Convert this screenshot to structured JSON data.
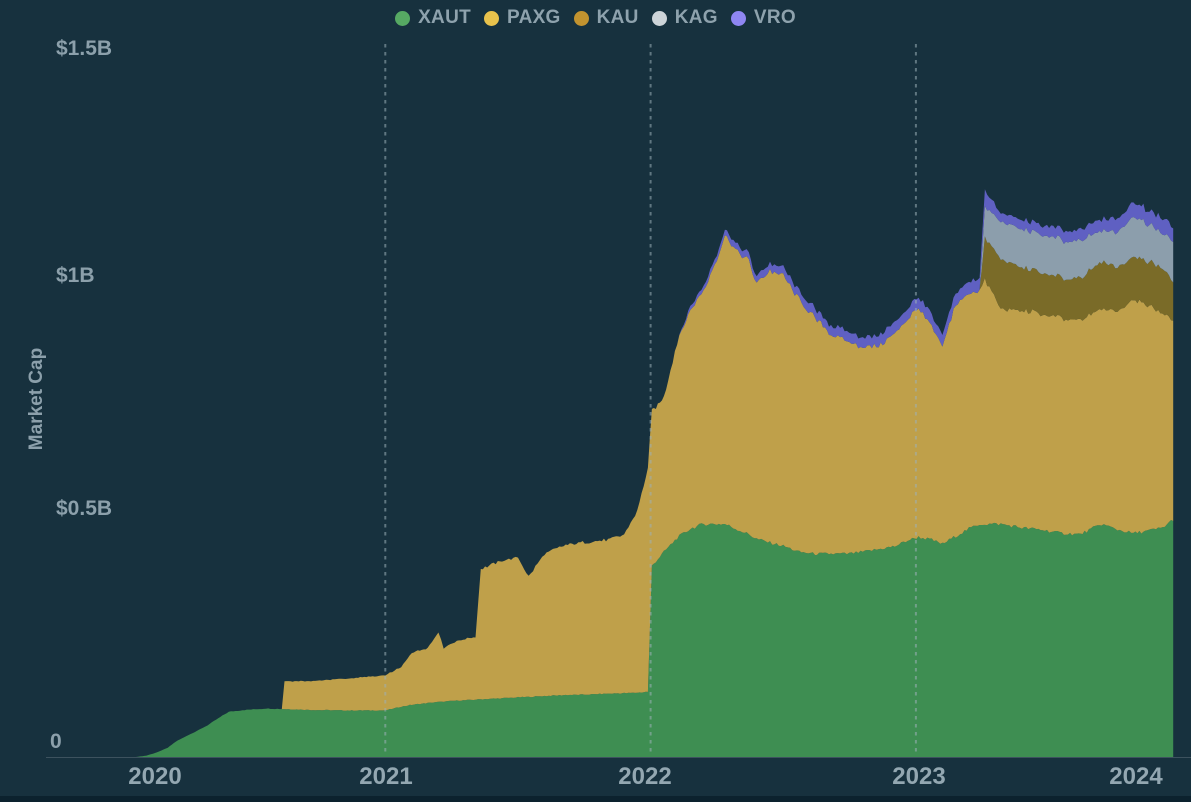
{
  "chart_data": {
    "type": "area",
    "stacked": true,
    "title": "",
    "ylabel": "Market Cap",
    "background_color": "#17313e",
    "legend_position": "top",
    "x_unit": "decimal_year",
    "y_unit": "USD billions",
    "ylim": [
      0,
      1.5
    ],
    "xlim": [
      2020,
      2024.05
    ],
    "grid": "vertical-dashed-at-years",
    "y_ticks": [
      {
        "value": 0,
        "label": "0"
      },
      {
        "value": 0.5,
        "label": "$0.5B"
      },
      {
        "value": 1.0,
        "label": "$1B"
      },
      {
        "value": 1.5,
        "label": "$1.5B"
      }
    ],
    "x_ticks": [
      {
        "year": 2020,
        "label": "2020"
      },
      {
        "year": 2021,
        "label": "2021"
      },
      {
        "year": 2022,
        "label": "2022"
      },
      {
        "year": 2023,
        "label": "2023"
      },
      {
        "year": 2024,
        "label": "2024"
      }
    ],
    "gridline_years": [
      2021,
      2022,
      2023
    ],
    "x": [
      2020.06,
      2020.1,
      2020.14,
      2020.18,
      2020.21,
      2020.25,
      2020.29,
      2020.33,
      2020.37,
      2020.41,
      2020.47,
      2020.55,
      2020.61,
      2020.62,
      2020.72,
      2020.85,
      2021.0,
      2021.06,
      2021.1,
      2021.16,
      2021.2,
      2021.22,
      2021.27,
      2021.34,
      2021.36,
      2021.44,
      2021.5,
      2021.54,
      2021.6,
      2021.68,
      2021.76,
      2021.84,
      2021.9,
      2021.95,
      2021.99,
      2022.005,
      2022.05,
      2022.1,
      2022.15,
      2022.2,
      2022.25,
      2022.28,
      2022.32,
      2022.37,
      2022.4,
      2022.45,
      2022.5,
      2022.56,
      2022.62,
      2022.68,
      2022.74,
      2022.8,
      2022.86,
      2022.92,
      2022.97,
      2023.01,
      2023.06,
      2023.1,
      2023.15,
      2023.2,
      2023.24,
      2023.26,
      2023.32,
      2023.4,
      2023.47,
      2023.55,
      2023.62,
      2023.7,
      2023.76,
      2023.82,
      2023.88,
      2023.93,
      2023.97
    ],
    "series": [
      {
        "name": "XAUT",
        "area_color": "#3E8E52",
        "dot_color": "#56A963",
        "values": [
          0.0,
          0.003,
          0.01,
          0.02,
          0.033,
          0.045,
          0.056,
          0.068,
          0.083,
          0.097,
          0.101,
          0.104,
          0.103,
          0.103,
          0.101,
          0.1,
          0.1,
          0.108,
          0.112,
          0.116,
          0.118,
          0.119,
          0.121,
          0.123,
          0.124,
          0.126,
          0.128,
          0.129,
          0.131,
          0.133,
          0.134,
          0.136,
          0.137,
          0.138,
          0.14,
          0.41,
          0.44,
          0.47,
          0.49,
          0.5,
          0.5,
          0.5,
          0.49,
          0.478,
          0.468,
          0.46,
          0.453,
          0.44,
          0.436,
          0.436,
          0.436,
          0.44,
          0.446,
          0.452,
          0.465,
          0.472,
          0.466,
          0.457,
          0.474,
          0.49,
          0.5,
          0.5,
          0.5,
          0.492,
          0.488,
          0.48,
          0.478,
          0.5,
          0.488,
          0.48,
          0.486,
          0.492,
          0.51
        ]
      },
      {
        "name": "PAXG",
        "area_color": "#BFA04A",
        "dot_color": "#E8C24C",
        "values": [
          0,
          0,
          0,
          0,
          0,
          0,
          0,
          0,
          0,
          0,
          0,
          0,
          0,
          0.06,
          0.062,
          0.068,
          0.075,
          0.085,
          0.112,
          0.118,
          0.15,
          0.115,
          0.128,
          0.135,
          0.28,
          0.295,
          0.3,
          0.258,
          0.305,
          0.322,
          0.327,
          0.33,
          0.34,
          0.39,
          0.48,
          0.333,
          0.33,
          0.42,
          0.47,
          0.5,
          0.57,
          0.62,
          0.6,
          0.586,
          0.547,
          0.584,
          0.58,
          0.54,
          0.505,
          0.47,
          0.455,
          0.438,
          0.436,
          0.456,
          0.476,
          0.493,
          0.454,
          0.422,
          0.499,
          0.503,
          0.503,
          0.525,
          0.461,
          0.465,
          0.463,
          0.46,
          0.458,
          0.461,
          0.47,
          0.503,
          0.48,
          0.46,
          0.426
        ]
      },
      {
        "name": "KAU",
        "area_color": "#7A6B28",
        "dot_color": "#C2932F",
        "values": [
          0,
          0,
          0,
          0,
          0,
          0,
          0,
          0,
          0,
          0,
          0,
          0,
          0,
          0,
          0,
          0,
          0,
          0,
          0,
          0,
          0,
          0,
          0,
          0,
          0,
          0,
          0,
          0,
          0,
          0,
          0,
          0,
          0,
          0,
          0,
          0,
          0,
          0,
          0,
          0,
          0,
          0,
          0,
          0,
          0,
          0,
          0,
          0,
          0,
          0,
          0,
          0,
          0,
          0,
          0,
          0,
          0,
          0,
          0,
          0,
          0,
          0.09,
          0.107,
          0.092,
          0.09,
          0.086,
          0.09,
          0.101,
          0.095,
          0.092,
          0.095,
          0.097,
          0.083
        ]
      },
      {
        "name": "KAG",
        "area_color": "#8C9EAC",
        "dot_color": "#CDD4D8",
        "values": [
          0,
          0,
          0,
          0,
          0,
          0,
          0,
          0,
          0,
          0,
          0,
          0,
          0,
          0,
          0,
          0,
          0,
          0,
          0,
          0,
          0,
          0,
          0,
          0,
          0,
          0,
          0,
          0,
          0,
          0,
          0,
          0,
          0,
          0,
          0,
          0,
          0,
          0,
          0,
          0,
          0,
          0,
          0,
          0,
          0,
          0,
          0,
          0,
          0,
          0,
          0,
          0,
          0,
          0,
          0,
          0,
          0,
          0,
          0,
          0,
          0,
          0.065,
          0.08,
          0.082,
          0.081,
          0.081,
          0.08,
          0.067,
          0.075,
          0.086,
          0.08,
          0.075,
          0.088
        ]
      },
      {
        "name": "VRO",
        "area_color": "#5F60C2",
        "dot_color": "#8F86F2",
        "values": [
          0,
          0,
          0,
          0,
          0,
          0,
          0,
          0,
          0,
          0,
          0,
          0,
          0,
          0,
          0,
          0,
          0,
          0,
          0,
          0,
          0,
          0,
          0,
          0,
          0,
          0,
          0,
          0,
          0,
          0,
          0,
          0,
          0,
          0,
          0,
          0,
          0,
          0,
          0.008,
          0.01,
          0.012,
          0.013,
          0.014,
          0.015,
          0.015,
          0.016,
          0.017,
          0.018,
          0.019,
          0.02,
          0.021,
          0.022,
          0.023,
          0.024,
          0.024,
          0.025,
          0.025,
          0.024,
          0.025,
          0.026,
          0.027,
          0.033,
          0.019,
          0.019,
          0.021,
          0.022,
          0.024,
          0.025,
          0.028,
          0.032,
          0.03,
          0.032,
          0.03
        ]
      }
    ],
    "colors": {
      "text": "#8ca0ab",
      "axis_line": "#3d525e",
      "gridline": "#9db0b8"
    }
  }
}
